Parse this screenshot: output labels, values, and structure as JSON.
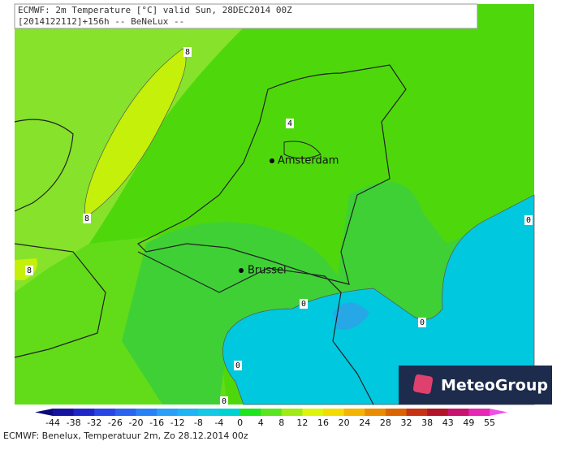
{
  "header": {
    "line1": "ECMWF: 2m Temperature [°C] valid Sun, 28DEC2014 00Z",
    "line2": "[2014122112]+156h -- BeNeLux --"
  },
  "map": {
    "cities": [
      {
        "name": "Amsterdam"
      },
      {
        "name": "Brussel"
      }
    ],
    "contour_labels": [
      8,
      8,
      8,
      4,
      0,
      0,
      0,
      0,
      0
    ]
  },
  "colorbar": {
    "ticks": [
      -44,
      -38,
      -32,
      -26,
      -20,
      -16,
      -12,
      -8,
      -4,
      0,
      4,
      8,
      12,
      16,
      20,
      24,
      28,
      32,
      38,
      43,
      49,
      55
    ],
    "colors": [
      "#0a0a78",
      "#1414a0",
      "#1e28c8",
      "#2846e6",
      "#2864f0",
      "#2882f5",
      "#28a0fa",
      "#1eb4f5",
      "#14c8e6",
      "#00d2d2",
      "#1ee61e",
      "#5ae61e",
      "#a0eb14",
      "#dcf50a",
      "#f5dc00",
      "#f5b400",
      "#eb8c00",
      "#dc6400",
      "#c83214",
      "#b41428",
      "#c8146e",
      "#e628b4",
      "#f050e6"
    ]
  },
  "footer": "ECMWF: Benelux, Temperatuur 2m, Zo 28.12.2014 00z",
  "logo": "MeteoGroup"
}
